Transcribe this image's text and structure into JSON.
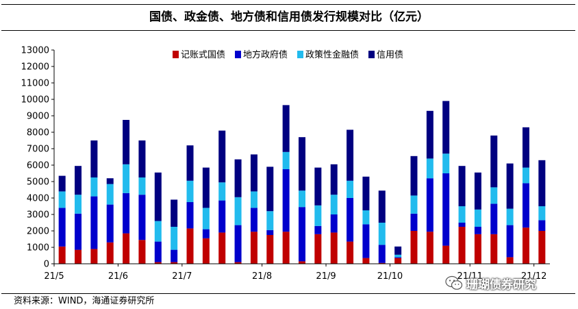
{
  "chart_data": {
    "type": "bar",
    "stacked": true,
    "title": "国债、政金债、地方债和信用债发行规模对比（亿元）",
    "xlabel": "",
    "ylabel": "",
    "ylim": [
      0,
      13000
    ],
    "yticks": [
      0,
      1000,
      2000,
      3000,
      4000,
      5000,
      6000,
      7000,
      8000,
      9000,
      10000,
      11000,
      12000,
      13000
    ],
    "legend_position": "top",
    "x_tick_labels": [
      {
        "label": "21/5",
        "index": 0
      },
      {
        "label": "21/6",
        "index": 4
      },
      {
        "label": "21/7",
        "index": 8
      },
      {
        "label": "21/8",
        "index": 13
      },
      {
        "label": "21/9",
        "index": 17
      },
      {
        "label": "21/10",
        "index": 21
      },
      {
        "label": "21/11",
        "index": 26
      },
      {
        "label": "21/12",
        "index": 30
      }
    ],
    "series": [
      {
        "name": "记账式国债",
        "color": "#c00000",
        "values": [
          1050,
          850,
          900,
          1300,
          1850,
          1450,
          100,
          100,
          2150,
          1550,
          1900,
          100,
          1950,
          1750,
          1950,
          150,
          1800,
          1900,
          1350,
          350,
          50,
          350,
          2000,
          1950,
          1100,
          2250,
          1800,
          1800,
          400,
          2200,
          2000
        ]
      },
      {
        "name": "地方政府债",
        "color": "#0000cc",
        "values": [
          2350,
          2200,
          3200,
          2300,
          2450,
          2750,
          1250,
          750,
          1600,
          550,
          1950,
          2250,
          1450,
          300,
          3800,
          3300,
          500,
          1100,
          2650,
          2050,
          1100,
          50,
          1050,
          3250,
          4400,
          250,
          450,
          1850,
          1950,
          2700,
          650
        ]
      },
      {
        "name": "政策性金融债",
        "color": "#22bbee",
        "values": [
          1000,
          1150,
          1150,
          1250,
          1750,
          1050,
          1250,
          1400,
          1300,
          1300,
          1100,
          1700,
          1000,
          1150,
          1050,
          1000,
          1250,
          1200,
          1050,
          850,
          1350,
          150,
          1100,
          1200,
          1200,
          1000,
          1050,
          1000,
          1000,
          950,
          850
        ]
      },
      {
        "name": "信用债",
        "color": "#000080",
        "values": [
          950,
          1750,
          2250,
          350,
          2700,
          2250,
          2950,
          1650,
          2150,
          2450,
          3150,
          2300,
          2250,
          2700,
          2850,
          3250,
          2300,
          1850,
          3100,
          2050,
          1950,
          500,
          2400,
          2900,
          3200,
          2450,
          2250,
          3150,
          2750,
          2450,
          2800
        ]
      }
    ],
    "source": "资料来源：WIND，海通证券研究所",
    "watermark": "珊瑚债券研究"
  }
}
